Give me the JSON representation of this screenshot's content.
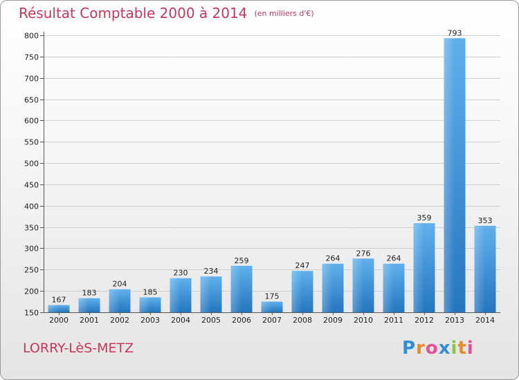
{
  "header": {
    "title": "Résultat Comptable 2000 à 2014",
    "unit": "(en milliers d'€)"
  },
  "footer": {
    "town": "LORRY-LèS-METZ",
    "logo_letters": [
      "P",
      "r",
      "o",
      "x",
      "i",
      "t",
      "i"
    ],
    "logo_colors": [
      "#2f8fd6",
      "#e8892a",
      "#e94f95",
      "#2f8fd6",
      "#8cc63f",
      "#e8892a",
      "#e94f95"
    ]
  },
  "chart_data": {
    "type": "bar",
    "categories": [
      "2000",
      "2001",
      "2002",
      "2003",
      "2004",
      "2005",
      "2006",
      "2007",
      "2008",
      "2009",
      "2010",
      "2011",
      "2012",
      "2013",
      "2014"
    ],
    "values": [
      167,
      183,
      204,
      185,
      230,
      234,
      259,
      175,
      247,
      264,
      276,
      264,
      359,
      793,
      353
    ],
    "title": "Résultat Comptable 2000 à 2014",
    "xlabel": "",
    "ylabel": "",
    "ylim": [
      150,
      800
    ],
    "yticks": [
      150,
      200,
      250,
      300,
      350,
      400,
      450,
      500,
      550,
      600,
      650,
      700,
      750,
      800
    ],
    "grid": true,
    "bar_color": "#3d94d9"
  }
}
